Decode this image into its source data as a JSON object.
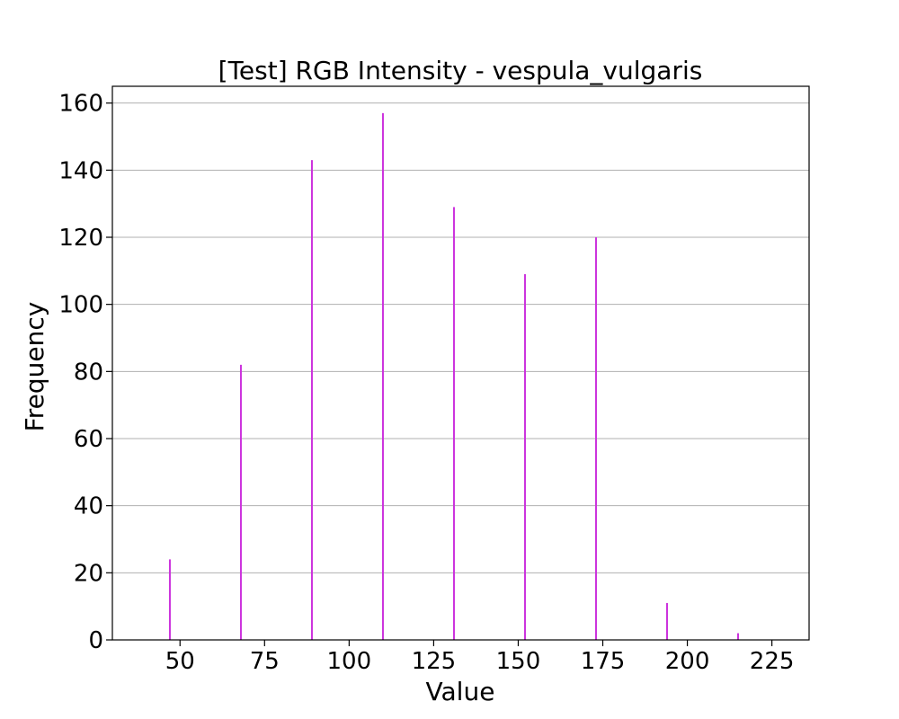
{
  "chart_data": {
    "type": "bar",
    "title": "[Test] RGB Intensity - vespula_vulgaris",
    "xlabel": "Value",
    "ylabel": "Frequency",
    "xlim": [
      30,
      236
    ],
    "ylim": [
      0,
      165
    ],
    "xticks": [
      50,
      75,
      100,
      125,
      150,
      175,
      200,
      225
    ],
    "yticks": [
      0,
      20,
      40,
      60,
      80,
      100,
      120,
      140,
      160
    ],
    "grid": "horizontal",
    "series": [
      {
        "color": "#cc33dd",
        "points": [
          {
            "x": 47,
            "y": 24
          },
          {
            "x": 68,
            "y": 82
          },
          {
            "x": 89,
            "y": 143
          },
          {
            "x": 110,
            "y": 157
          },
          {
            "x": 131,
            "y": 129
          },
          {
            "x": 152,
            "y": 109
          },
          {
            "x": 173,
            "y": 120
          },
          {
            "x": 194,
            "y": 11
          },
          {
            "x": 215,
            "y": 2
          }
        ]
      }
    ]
  }
}
